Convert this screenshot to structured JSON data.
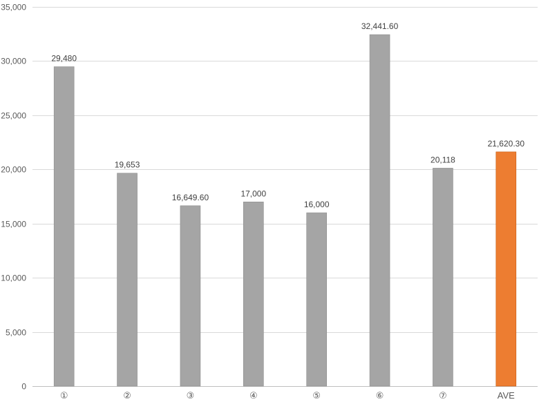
{
  "chart_data": {
    "type": "bar",
    "title": "",
    "xlabel": "",
    "ylabel": "",
    "categories": [
      "①",
      "②",
      "③",
      "④",
      "⑤",
      "⑥",
      "⑦",
      "AVE"
    ],
    "values": [
      29480,
      19653,
      16649.6,
      17000,
      16000,
      32441.6,
      20118,
      21620.3
    ],
    "data_labels": [
      "29,480",
      "19,653",
      "16,649.60",
      "17,000",
      "16,000",
      "32,441.60",
      "20,118",
      "21,620.30"
    ],
    "ylim": [
      0,
      35000
    ],
    "yticks": [
      0,
      5000,
      10000,
      15000,
      20000,
      25000,
      30000,
      35000
    ],
    "ytick_labels": [
      "0",
      "5,000",
      "10,000",
      "15,000",
      "20,000",
      "25,000",
      "30,000",
      "35,000"
    ],
    "grid": true,
    "legend": "none",
    "colors": {
      "default_bar": "#a5a5a5",
      "highlight_bar": "#ed7d31",
      "highlight_category": "AVE"
    }
  }
}
